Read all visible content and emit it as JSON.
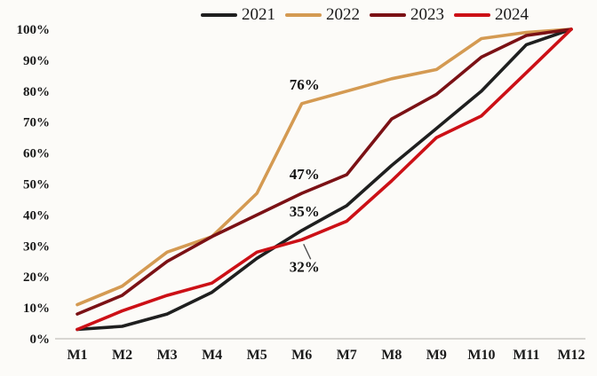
{
  "chart_data": {
    "type": "line",
    "title": "",
    "xlabel": "",
    "ylabel": "",
    "categories": [
      "M1",
      "M2",
      "M3",
      "M4",
      "M5",
      "M6",
      "M7",
      "M8",
      "M9",
      "M10",
      "M11",
      "M12"
    ],
    "series": [
      {
        "name": "2021",
        "color": "#1f1f1f",
        "values": [
          3,
          4,
          8,
          15,
          26,
          35,
          43,
          56,
          68,
          80,
          95,
          100
        ]
      },
      {
        "name": "2022",
        "color": "#d49a52",
        "values": [
          11,
          17,
          28,
          33,
          47,
          76,
          80,
          84,
          87,
          97,
          99,
          100
        ]
      },
      {
        "name": "2023",
        "color": "#7b1115",
        "values": [
          8,
          14,
          25,
          33,
          40,
          47,
          53,
          71,
          79,
          91,
          98,
          100
        ]
      },
      {
        "name": "2024",
        "color": "#cc1016",
        "values": [
          3,
          9,
          14,
          18,
          28,
          32,
          38,
          51,
          65,
          72,
          86,
          100
        ]
      }
    ],
    "y_axis": {
      "min": 0,
      "max": 100,
      "step": 10,
      "tick_labels": [
        "0%",
        "10%",
        "20%",
        "30%",
        "40%",
        "50%",
        "60%",
        "70%",
        "80%",
        "90%",
        "100%"
      ]
    },
    "x_axis": {
      "tick_labels": [
        "M1",
        "M2",
        "M3",
        "M4",
        "M5",
        "M6",
        "M7",
        "M8",
        "M9",
        "M10",
        "M11",
        "M12"
      ]
    },
    "legend_position": "top",
    "grid": false,
    "annotations": [
      {
        "text": "76%",
        "series": "2022",
        "category": "M6",
        "value": 76,
        "position": "above",
        "callout": false
      },
      {
        "text": "47%",
        "series": "2023",
        "category": "M6",
        "value": 47,
        "position": "above",
        "callout": false
      },
      {
        "text": "35%",
        "series": "2021",
        "category": "M6",
        "value": 35,
        "position": "above",
        "callout": false
      },
      {
        "text": "32%",
        "series": "2024",
        "category": "M6",
        "value": 32,
        "position": "below",
        "callout": true
      }
    ]
  },
  "colors": {
    "background": "#fcfbf8",
    "axis_line": "#c2c0bc",
    "text": "#1a1a1a",
    "callout_line": "#4a4a4a"
  }
}
